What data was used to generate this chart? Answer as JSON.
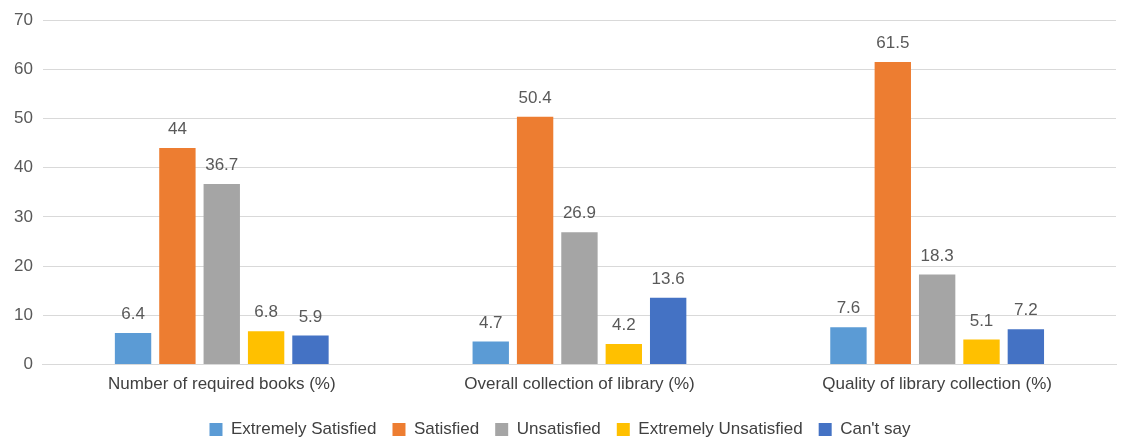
{
  "chart_data": {
    "type": "bar",
    "categories": [
      "Number of required books (%)",
      "Overall collection of library (%)",
      "Quality of library collection (%)"
    ],
    "series": [
      {
        "name": "Extremely Satisfied",
        "color": "#5b9bd5",
        "values": [
          6.4,
          4.7,
          7.6
        ]
      },
      {
        "name": "Satisfied",
        "color": "#ed7d31",
        "values": [
          44,
          50.4,
          61.5
        ]
      },
      {
        "name": "Unsatisfied",
        "color": "#a5a5a5",
        "values": [
          36.7,
          26.9,
          18.3
        ]
      },
      {
        "name": "Extremely Unsatisfied",
        "color": "#ffc000",
        "values": [
          6.8,
          4.2,
          5.1
        ]
      },
      {
        "name": "Can't say",
        "color": "#4472c4",
        "values": [
          5.9,
          13.6,
          7.2
        ]
      }
    ],
    "ylim": [
      0,
      70
    ],
    "yticks": [
      0,
      10,
      20,
      30,
      40,
      50,
      60,
      70
    ],
    "grid": "y",
    "legend": "bottom",
    "data_labels": true
  }
}
